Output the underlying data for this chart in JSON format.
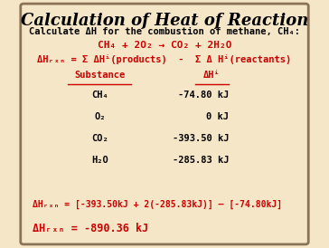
{
  "title": "Calculation of Heat of Reaction",
  "bg_color": "#f5e6c8",
  "border_color": "#8b7355",
  "red_color": "#cc0000",
  "black_color": "#000000",
  "subtitle": "Calculate ΔH for the combustion of methane, CH₄:",
  "reaction": "CH₄ + 2O₂ → CO₂ + 2H₂O",
  "formula_line": "ΔHᵣₓₙ = Σ ΔHⁱ(products)  -  Σ Δ Hⁱ(reactants)",
  "col1_header": "Substance",
  "col2_header": "ΔHⁱ",
  "substances": [
    "CH₄",
    "O₂",
    "CO₂",
    "H₂O"
  ],
  "values": [
    "-74.80 kJ",
    "0 kJ",
    "-393.50 kJ",
    "-285.83 kJ"
  ],
  "calc_line1": "ΔHᵣₓₙ = [-393.50kJ + 2(-285.83kJ)] – [-74.80kJ]",
  "calc_line2": "ΔHᵣₓₙ = -890.36 kJ",
  "figsize": [
    3.64,
    2.74
  ],
  "dpi": 100
}
